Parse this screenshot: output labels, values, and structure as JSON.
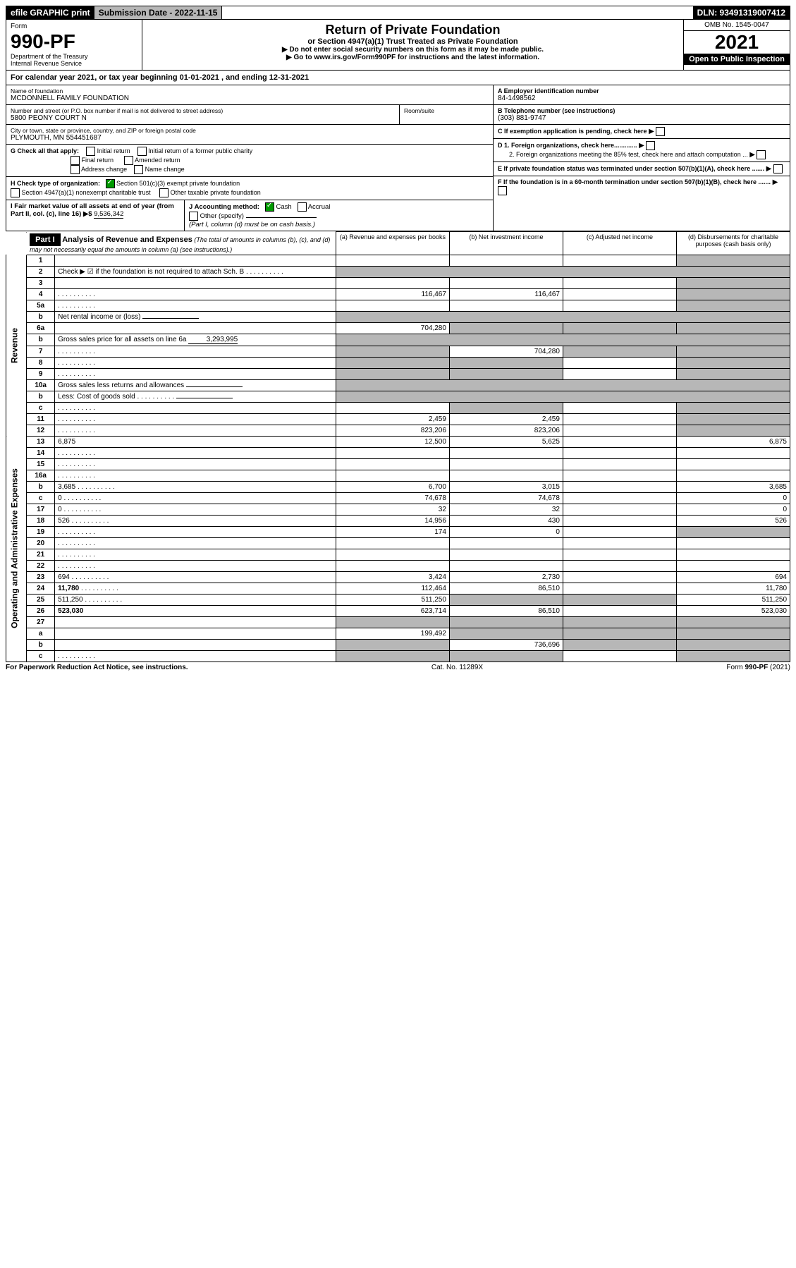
{
  "top": {
    "efile": "efile GRAPHIC print",
    "sub": "Submission Date - 2022-11-15",
    "dln": "DLN: 93491319007412"
  },
  "header": {
    "form": "Form",
    "num": "990-PF",
    "dept": "Department of the Treasury\nInternal Revenue Service",
    "title": "Return of Private Foundation",
    "subtitle": "or Section 4947(a)(1) Trust Treated as Private Foundation",
    "note1": "▶ Do not enter social security numbers on this form as it may be made public.",
    "note2": "▶ Go to www.irs.gov/Form990PF for instructions and the latest information.",
    "omb": "OMB No. 1545-0047",
    "year": "2021",
    "open": "Open to Public Inspection"
  },
  "cal": "For calendar year 2021, or tax year beginning 01-01-2021                            , and ending 12-31-2021",
  "meta": {
    "name_label": "Name of foundation",
    "name": "MCDONNELL FAMILY FOUNDATION",
    "addr_label": "Number and street (or P.O. box number if mail is not delivered to street address)",
    "addr": "5800 PEONY COURT N",
    "room_label": "Room/suite",
    "city_label": "City or town, state or province, country, and ZIP or foreign postal code",
    "city": "PLYMOUTH, MN  554451687",
    "ein_label": "A Employer identification number",
    "ein": "84-1498562",
    "phone_label": "B Telephone number (see instructions)",
    "phone": "(303) 881-9747",
    "c_label": "C If exemption application is pending, check here",
    "d1": "D 1. Foreign organizations, check here.............",
    "d2": "2. Foreign organizations meeting the 85% test, check here and attach computation ...",
    "e_label": "E  If private foundation status was terminated under section 507(b)(1)(A), check here .......",
    "f_label": "F  If the foundation is in a 60-month termination under section 507(b)(1)(B), check here .......",
    "g_label": "G Check all that apply:",
    "g_opts": [
      "Initial return",
      "Initial return of a former public charity",
      "Final return",
      "Amended return",
      "Address change",
      "Name change"
    ],
    "h_label": "H Check type of organization:",
    "h_opts": [
      "Section 501(c)(3) exempt private foundation",
      "Section 4947(a)(1) nonexempt charitable trust",
      "Other taxable private foundation"
    ],
    "i_label": "I Fair market value of all assets at end of year (from Part II, col. (c), line 16) ▶$",
    "i_val": "9,536,342",
    "j_label": "J Accounting method:",
    "j_opts": [
      "Cash",
      "Accrual"
    ],
    "j_other": "Other (specify)",
    "j_note": "(Part I, column (d) must be on cash basis.)"
  },
  "part1": {
    "label": "Part I",
    "title": "Analysis of Revenue and Expenses",
    "title_note": "(The total of amounts in columns (b), (c), and (d) may not necessarily equal the amounts in column (a) (see instructions).)",
    "cols": {
      "a": "(a) Revenue and expenses per books",
      "b": "(b) Net investment income",
      "c": "(c) Adjusted net income",
      "d": "(d) Disbursements for charitable purposes (cash basis only)"
    },
    "side_rev": "Revenue",
    "side_exp": "Operating and Administrative Expenses",
    "rows": [
      {
        "n": "1",
        "d": "",
        "a": "",
        "b": "",
        "c": "",
        "greyC": false,
        "greyD": true
      },
      {
        "n": "2",
        "d": "Check ▶ ☑ if the foundation is not required to attach Sch. B",
        "dots": true,
        "noamt": true
      },
      {
        "n": "3",
        "d": "",
        "a": "",
        "b": "",
        "c": "",
        "greyD": true
      },
      {
        "n": "4",
        "d": "",
        "dots": true,
        "a": "116,467",
        "b": "116,467",
        "c": "",
        "greyD": true
      },
      {
        "n": "5a",
        "d": "",
        "dots": true,
        "a": "",
        "b": "",
        "c": "",
        "greyD": true
      },
      {
        "n": "b",
        "d": "Net rental income or (loss)",
        "underline": true,
        "noamt": true
      },
      {
        "n": "6a",
        "d": "",
        "a": "704,280",
        "b": "",
        "c": "",
        "greyB": true,
        "greyC": true,
        "greyD": true
      },
      {
        "n": "b",
        "d": "Gross sales price for all assets on line 6a",
        "inline": "3,293,995",
        "noamt": true
      },
      {
        "n": "7",
        "d": "",
        "dots": true,
        "a": "",
        "b": "704,280",
        "c": "",
        "greyA": true,
        "greyC": true,
        "greyD": true
      },
      {
        "n": "8",
        "d": "",
        "dots": true,
        "a": "",
        "b": "",
        "c": "",
        "greyA": true,
        "greyB": true,
        "greyD": true
      },
      {
        "n": "9",
        "d": "",
        "dots": true,
        "a": "",
        "b": "",
        "c": "",
        "greyA": true,
        "greyB": true,
        "greyD": true
      },
      {
        "n": "10a",
        "d": "Gross sales less returns and allowances",
        "underline": true,
        "noamt": true
      },
      {
        "n": "b",
        "d": "Less: Cost of goods sold",
        "dots": true,
        "underline": true,
        "noamt": true
      },
      {
        "n": "c",
        "d": "",
        "dots": true,
        "a": "",
        "b": "",
        "c": "",
        "greyB": true,
        "greyD": true
      },
      {
        "n": "11",
        "d": "",
        "dots": true,
        "a": "2,459",
        "b": "2,459",
        "c": "",
        "greyD": true
      },
      {
        "n": "12",
        "d": "",
        "dots": true,
        "bold": true,
        "a": "823,206",
        "b": "823,206",
        "c": "",
        "greyD": true
      },
      {
        "n": "13",
        "d": "6,875",
        "a": "12,500",
        "b": "5,625",
        "c": ""
      },
      {
        "n": "14",
        "d": "",
        "dots": true,
        "a": "",
        "b": "",
        "c": ""
      },
      {
        "n": "15",
        "d": "",
        "dots": true,
        "a": "",
        "b": "",
        "c": ""
      },
      {
        "n": "16a",
        "d": "",
        "dots": true,
        "a": "",
        "b": "",
        "c": ""
      },
      {
        "n": "b",
        "d": "3,685",
        "dots": true,
        "a": "6,700",
        "b": "3,015",
        "c": ""
      },
      {
        "n": "c",
        "d": "0",
        "dots": true,
        "a": "74,678",
        "b": "74,678",
        "c": ""
      },
      {
        "n": "17",
        "d": "0",
        "dots": true,
        "a": "32",
        "b": "32",
        "c": ""
      },
      {
        "n": "18",
        "d": "526",
        "dots": true,
        "a": "14,956",
        "b": "430",
        "c": ""
      },
      {
        "n": "19",
        "d": "",
        "dots": true,
        "a": "174",
        "b": "0",
        "c": "",
        "greyD": true
      },
      {
        "n": "20",
        "d": "",
        "dots": true,
        "a": "",
        "b": "",
        "c": ""
      },
      {
        "n": "21",
        "d": "",
        "dots": true,
        "a": "",
        "b": "",
        "c": ""
      },
      {
        "n": "22",
        "d": "",
        "dots": true,
        "a": "",
        "b": "",
        "c": ""
      },
      {
        "n": "23",
        "d": "694",
        "dots": true,
        "a": "3,424",
        "b": "2,730",
        "c": ""
      },
      {
        "n": "24",
        "d": "11,780",
        "dots": true,
        "bold": true,
        "a": "112,464",
        "b": "86,510",
        "c": ""
      },
      {
        "n": "25",
        "d": "511,250",
        "dots": true,
        "a": "511,250",
        "b": "",
        "c": "",
        "greyB": true,
        "greyC": true
      },
      {
        "n": "26",
        "d": "523,030",
        "bold": true,
        "a": "623,714",
        "b": "86,510",
        "c": ""
      },
      {
        "n": "27",
        "d": "",
        "a": "",
        "b": "",
        "c": "",
        "greyA": true,
        "greyB": true,
        "greyC": true,
        "greyD": true
      },
      {
        "n": "a",
        "d": "",
        "bold": true,
        "a": "199,492",
        "b": "",
        "c": "",
        "greyB": true,
        "greyC": true,
        "greyD": true
      },
      {
        "n": "b",
        "d": "",
        "bold": true,
        "a": "",
        "b": "736,696",
        "c": "",
        "greyA": true,
        "greyC": true,
        "greyD": true
      },
      {
        "n": "c",
        "d": "",
        "dots": true,
        "bold": true,
        "a": "",
        "b": "",
        "c": "",
        "greyA": true,
        "greyB": true,
        "greyD": true
      }
    ]
  },
  "footer": {
    "left": "For Paperwork Reduction Act Notice, see instructions.",
    "mid": "Cat. No. 11289X",
    "right": "Form 990-PF (2021)"
  },
  "colors": {
    "grey": "#b7b7b7",
    "link": "#0066cc",
    "green": "#009900"
  }
}
